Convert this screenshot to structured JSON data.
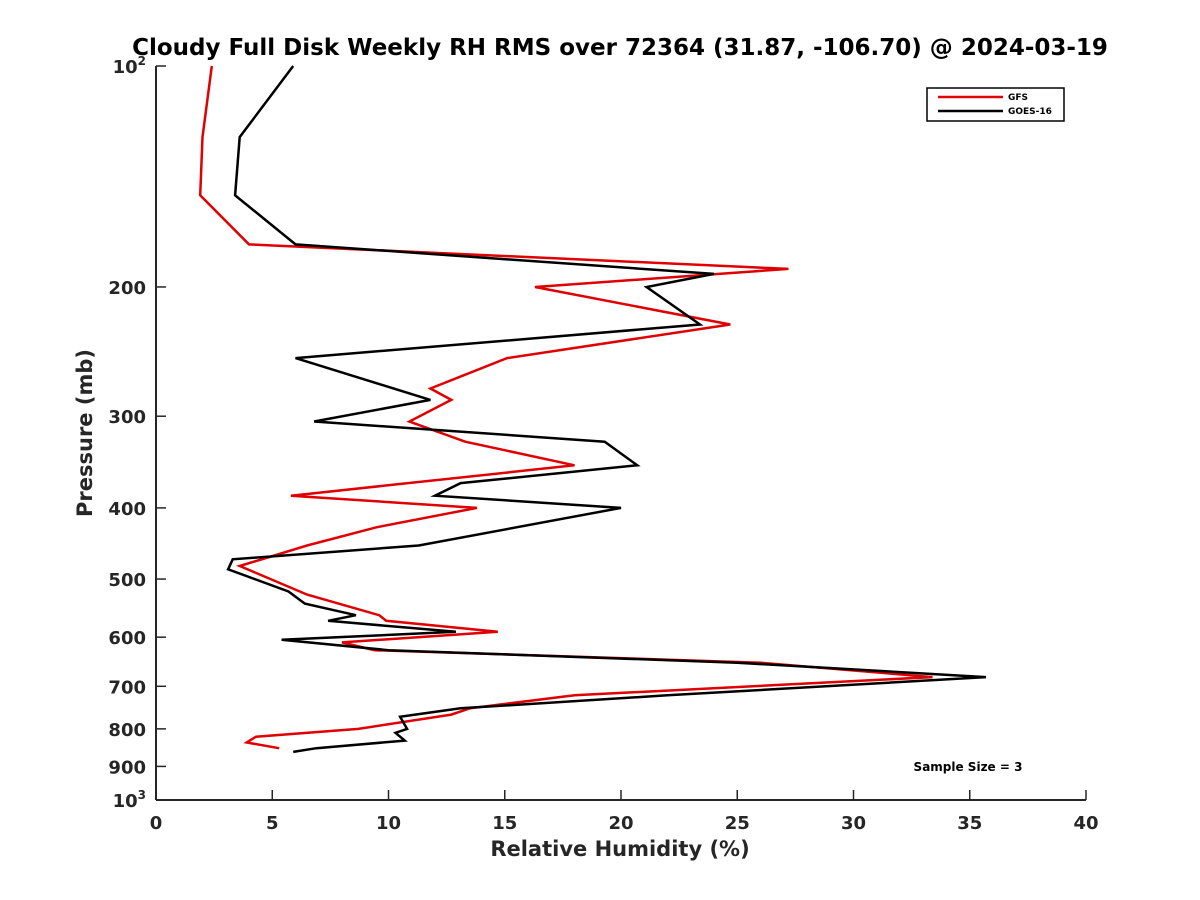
{
  "chart_data": {
    "type": "line",
    "title": "Cloudy Full Disk Weekly RH RMS over 72364 (31.87, -106.70) @ 2024-03-19",
    "xlabel": "Relative Humidity (%)",
    "ylabel": "Pressure (mb)",
    "xlim": [
      0,
      40
    ],
    "ylim": [
      100,
      1000
    ],
    "y_scale": "log",
    "y_reversed": true,
    "grid": false,
    "legend_position": "top-right",
    "x_ticks": [
      "0",
      "5",
      "10",
      "15",
      "20",
      "25",
      "30",
      "35",
      "40"
    ],
    "y_ticks": [
      {
        "value": 100,
        "base": "10",
        "exp": "2"
      },
      {
        "value": 200,
        "label": "200"
      },
      {
        "value": 300,
        "label": "300"
      },
      {
        "value": 400,
        "label": "400"
      },
      {
        "value": 500,
        "label": "500"
      },
      {
        "value": 600,
        "label": "600"
      },
      {
        "value": 700,
        "label": "700"
      },
      {
        "value": 800,
        "label": "800"
      },
      {
        "value": 900,
        "label": "900"
      },
      {
        "value": 1000,
        "base": "10",
        "exp": "3"
      }
    ],
    "series": [
      {
        "name": "GFS",
        "color": "#e00000",
        "points": [
          [
            2.4,
            100
          ],
          [
            2.0,
            125
          ],
          [
            1.9,
            150
          ],
          [
            4.0,
            175
          ],
          [
            27.2,
            189
          ],
          [
            16.3,
            200
          ],
          [
            24.7,
            225
          ],
          [
            15.1,
            250
          ],
          [
            11.8,
            275
          ],
          [
            12.7,
            285
          ],
          [
            10.9,
            305
          ],
          [
            13.3,
            325
          ],
          [
            18.0,
            350
          ],
          [
            5.8,
            385
          ],
          [
            13.8,
            400
          ],
          [
            9.5,
            425
          ],
          [
            6.5,
            450
          ],
          [
            3.6,
            480
          ],
          [
            6.5,
            525
          ],
          [
            9.6,
            560
          ],
          [
            9.9,
            570
          ],
          [
            14.7,
            590
          ],
          [
            8.0,
            610
          ],
          [
            9.4,
            625
          ],
          [
            26.0,
            650
          ],
          [
            33.4,
            680
          ],
          [
            18.0,
            720
          ],
          [
            13.5,
            750
          ],
          [
            12.7,
            765
          ],
          [
            8.7,
            800
          ],
          [
            4.3,
            820
          ],
          [
            3.9,
            835
          ],
          [
            5.3,
            850
          ]
        ]
      },
      {
        "name": "GOES-16",
        "color": "#000000",
        "points": [
          [
            5.9,
            100
          ],
          [
            3.6,
            125
          ],
          [
            3.4,
            150
          ],
          [
            6.0,
            175
          ],
          [
            24.0,
            192
          ],
          [
            21.1,
            200
          ],
          [
            23.4,
            225
          ],
          [
            6.0,
            250
          ],
          [
            11.8,
            285
          ],
          [
            6.8,
            305
          ],
          [
            19.3,
            325
          ],
          [
            20.7,
            350
          ],
          [
            13.1,
            370
          ],
          [
            12.0,
            385
          ],
          [
            20.0,
            400
          ],
          [
            11.3,
            450
          ],
          [
            3.3,
            470
          ],
          [
            3.1,
            485
          ],
          [
            5.7,
            520
          ],
          [
            6.4,
            540
          ],
          [
            8.6,
            560
          ],
          [
            7.4,
            570
          ],
          [
            12.9,
            590
          ],
          [
            5.4,
            605
          ],
          [
            10.0,
            625
          ],
          [
            25.0,
            650
          ],
          [
            35.7,
            680
          ],
          [
            22.0,
            720
          ],
          [
            13.1,
            750
          ],
          [
            10.5,
            770
          ],
          [
            10.8,
            800
          ],
          [
            10.3,
            810
          ],
          [
            10.7,
            830
          ],
          [
            6.9,
            850
          ],
          [
            5.9,
            860
          ]
        ]
      }
    ],
    "annotations": [
      "Sample Size = 3"
    ]
  }
}
